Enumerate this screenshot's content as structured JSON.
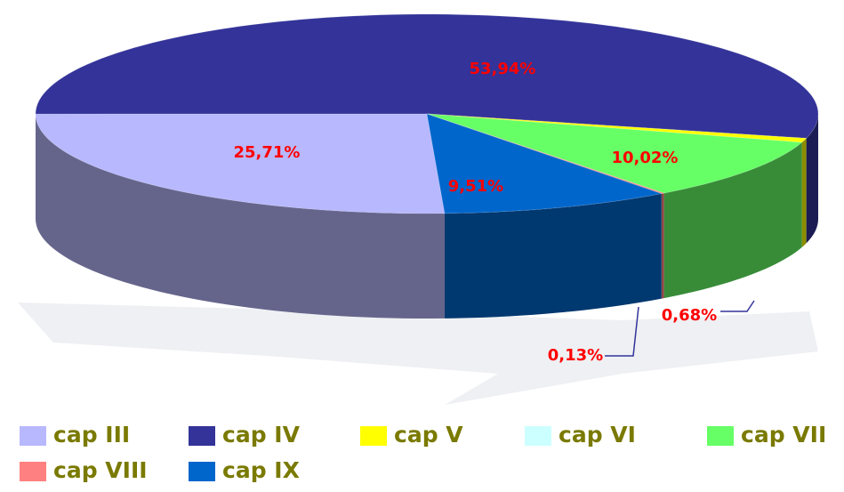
{
  "chart_data": {
    "type": "pie",
    "categories": [
      "cap III",
      "cap IV",
      "cap V",
      "cap VI",
      "cap VII",
      "cap VIII",
      "cap IX"
    ],
    "values": [
      25.71,
      53.94,
      0.68,
      0,
      10.02,
      0.13,
      9.51
    ],
    "value_labels": [
      "25,71%",
      "53,94%",
      "0,68%",
      null,
      "10,02%",
      "0,13%",
      "9,51%"
    ],
    "colors": [
      "#b8b8ff",
      "#333399",
      "#ffff00",
      "#ccffff",
      "#66ff66",
      "#ff8080",
      "#0066cc"
    ],
    "legend": "bottom"
  }
}
